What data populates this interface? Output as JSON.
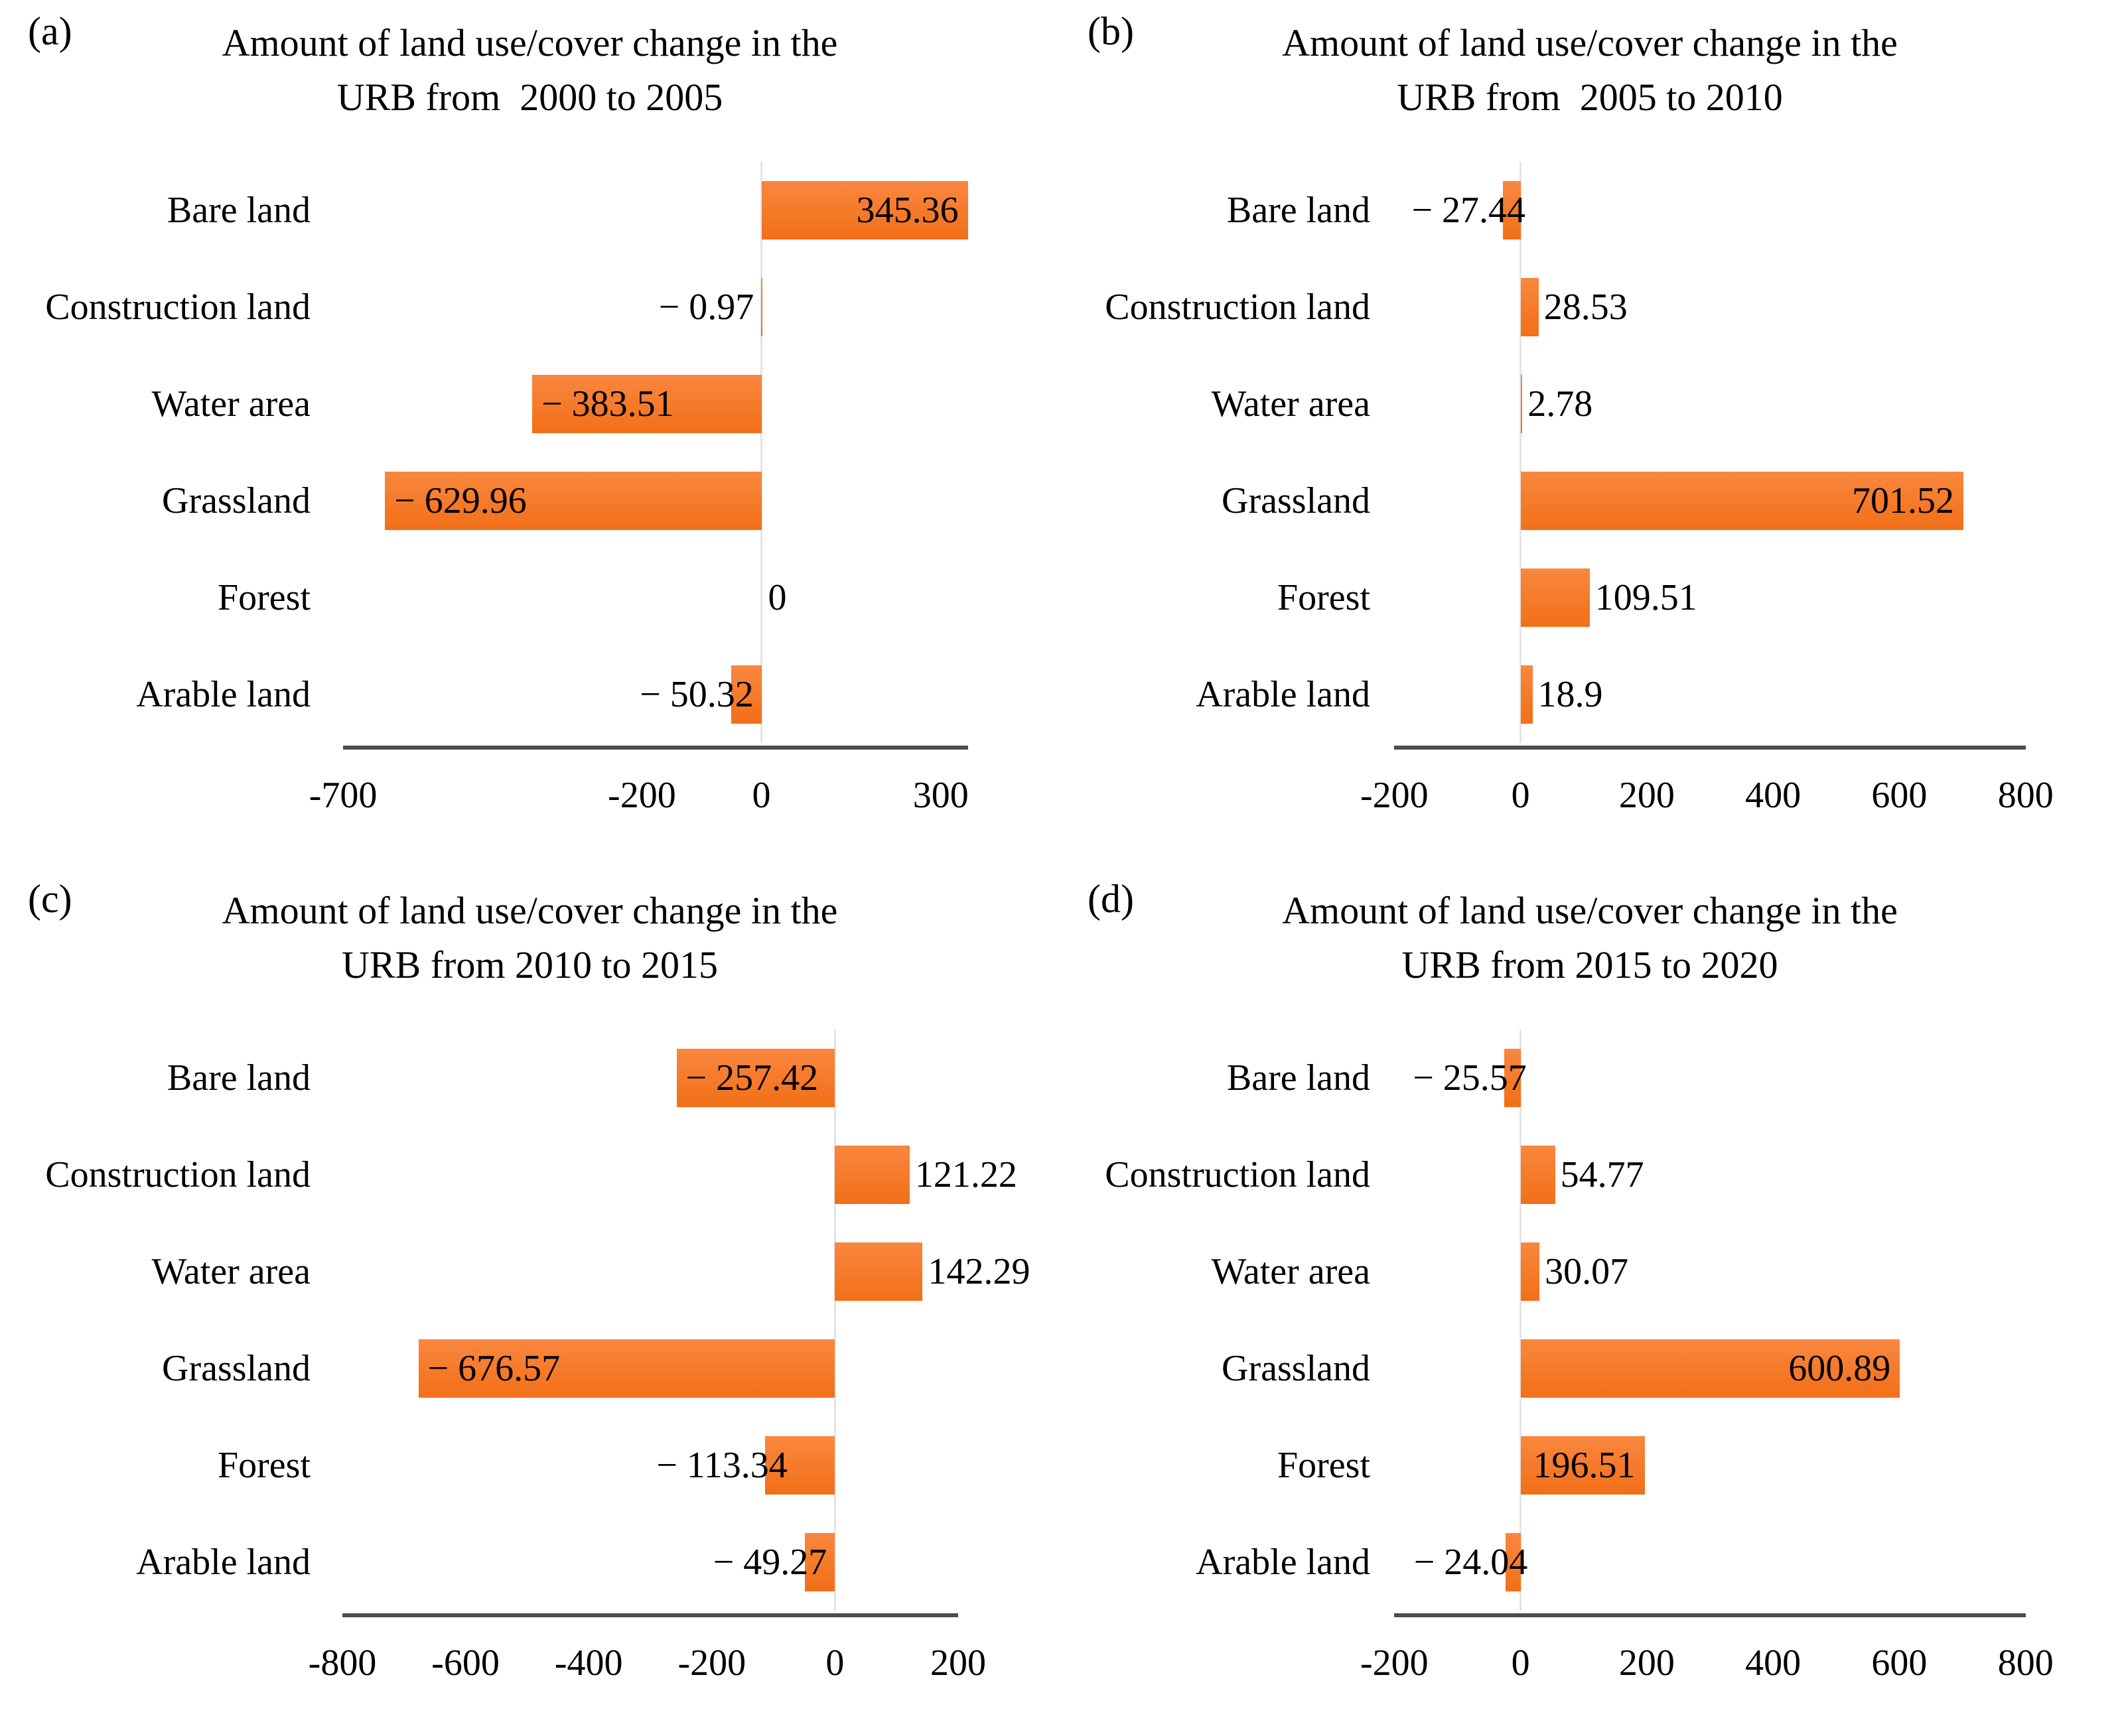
{
  "style": {
    "bar_gradient_top": "#F9873F",
    "bar_gradient_bottom": "#F26F17",
    "bar_color": "#F4711F",
    "axis_color": "#4D4D4D",
    "zero_gridline_color": "#E4E4E4",
    "text_color": "#000000",
    "background": "#FFFFFF"
  },
  "chart_data": [
    {
      "type": "bar",
      "orientation": "horizontal",
      "panel": "(a)",
      "title": "Amount of land use/cover change in the URB from  2000 to 2005",
      "title_lines": [
        "Amount of land use/cover change in the",
        "URB from  2000 to 2005"
      ],
      "categories": [
        "Bare land",
        "Construction land",
        "Water area",
        "Grassland",
        "Forest",
        "Arable land"
      ],
      "values": [
        345.36,
        -0.97,
        -383.51,
        -629.96,
        0,
        -50.32
      ],
      "data_labels": [
        "345.36",
        "− 0.97",
        "− 383.51",
        "− 629.96",
        "0",
        "− 50.32"
      ],
      "x_ticks": [
        -700,
        -200,
        0,
        300
      ],
      "x_tick_labels": [
        "-700",
        "-200",
        "0",
        "300"
      ],
      "xlim": [
        -730,
        358
      ],
      "grid": false,
      "legend": "none"
    },
    {
      "type": "bar",
      "orientation": "horizontal",
      "panel": "(b)",
      "title": "Amount of land use/cover change in the URB from  2005 to 2010",
      "title_lines": [
        "Amount of land use/cover change in the",
        "URB from  2005 to 2010"
      ],
      "categories": [
        "Bare land",
        "Construction land",
        "Water area",
        "Grassland",
        "Forest",
        "Arable land"
      ],
      "values": [
        -27.44,
        28.53,
        2.78,
        701.52,
        109.51,
        18.9
      ],
      "data_labels": [
        "− 27.44",
        "28.53",
        "2.78",
        "701.52",
        "109.51",
        "18.9"
      ],
      "x_ticks": [
        -200,
        0,
        200,
        400,
        600,
        800
      ],
      "x_tick_labels": [
        "-200",
        "0",
        "200",
        "400",
        "600",
        "800"
      ],
      "xlim": [
        -215,
        815
      ],
      "grid": false,
      "legend": "none"
    },
    {
      "type": "bar",
      "orientation": "horizontal",
      "panel": "(c)",
      "title": "Amount of land use/cover change in the URB from 2010 to 2015",
      "title_lines": [
        "Amount of land use/cover change in the",
        "URB from 2010 to 2015"
      ],
      "categories": [
        "Bare land",
        "Construction land",
        "Water area",
        "Grassland",
        "Forest",
        "Arable land"
      ],
      "values": [
        -257.42,
        121.22,
        142.29,
        -676.57,
        -113.34,
        -49.27
      ],
      "data_labels": [
        "− 257.42",
        "121.22",
        "142.29",
        "− 676.57",
        "− 113.34",
        "− 49.27"
      ],
      "x_ticks": [
        -800,
        -600,
        -400,
        -200,
        0,
        200
      ],
      "x_tick_labels": [
        "-800",
        "-600",
        "-400",
        "-200",
        "0",
        "200"
      ],
      "xlim": [
        -828,
        228
      ],
      "grid": false,
      "legend": "none"
    },
    {
      "type": "bar",
      "orientation": "horizontal",
      "panel": "(d)",
      "title": "Amount of land use/cover change in the URB from 2015 to 2020",
      "title_lines": [
        "Amount of land use/cover change in the",
        "URB from 2015 to 2020"
      ],
      "categories": [
        "Bare land",
        "Construction land",
        "Water area",
        "Grassland",
        "Forest",
        "Arable land"
      ],
      "values": [
        -25.57,
        54.77,
        30.07,
        600.89,
        196.51,
        -24.04
      ],
      "data_labels": [
        "− 25.57",
        "54.77",
        "30.07",
        "600.89",
        "196.51",
        "− 24.04"
      ],
      "x_ticks": [
        -200,
        0,
        200,
        400,
        600,
        800
      ],
      "x_tick_labels": [
        "-200",
        "0",
        "200",
        "400",
        "600",
        "800"
      ],
      "xlim": [
        -215,
        815
      ],
      "grid": false,
      "legend": "none"
    }
  ]
}
